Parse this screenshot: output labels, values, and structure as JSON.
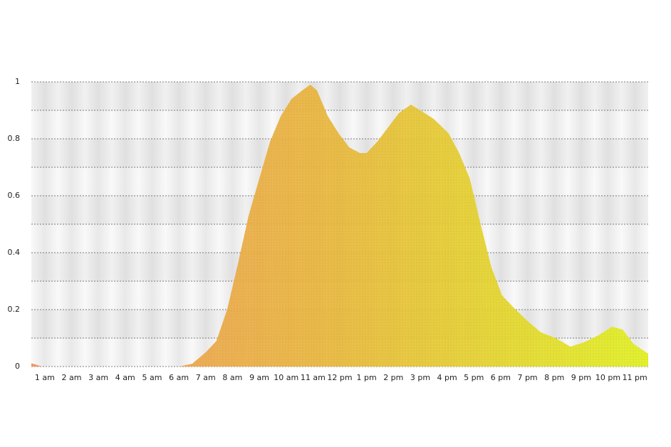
{
  "chart_data": {
    "type": "area",
    "x": [
      0.5,
      0.9,
      2,
      4,
      6,
      6.5,
      7,
      7.4,
      7.8,
      8.2,
      8.6,
      9,
      9.4,
      9.8,
      10.2,
      10.6,
      10.9,
      11.15,
      11.55,
      11.95,
      12.35,
      12.75,
      13,
      13.4,
      13.8,
      14.2,
      14.65,
      15,
      15.5,
      16.05,
      16.45,
      16.85,
      17.25,
      17.65,
      18.05,
      18.45,
      19,
      19.5,
      20.05,
      20.6,
      21.1,
      21.65,
      22.15,
      22.55,
      22.95,
      23.5
    ],
    "values": [
      0.012,
      0,
      0,
      0,
      0,
      0.01,
      0.05,
      0.09,
      0.2,
      0.36,
      0.53,
      0.66,
      0.79,
      0.88,
      0.94,
      0.97,
      0.99,
      0.97,
      0.88,
      0.82,
      0.77,
      0.75,
      0.75,
      0.79,
      0.84,
      0.89,
      0.92,
      0.9,
      0.87,
      0.82,
      0.75,
      0.66,
      0.5,
      0.35,
      0.25,
      0.21,
      0.16,
      0.12,
      0.1,
      0.07,
      0.085,
      0.11,
      0.14,
      0.13,
      0.08,
      0.045
    ],
    "gradient": [
      "#f0935a",
      "#e8b83a",
      "#e0f020"
    ],
    "xlim": [
      0.5,
      23.5
    ],
    "xticks": [
      {
        "value": 1,
        "label": "1 am"
      },
      {
        "value": 2,
        "label": "2 am"
      },
      {
        "value": 3,
        "label": "3 am"
      },
      {
        "value": 4,
        "label": "4 am"
      },
      {
        "value": 5,
        "label": "5 am"
      },
      {
        "value": 6,
        "label": "6 am"
      },
      {
        "value": 7,
        "label": "7 am"
      },
      {
        "value": 8,
        "label": "8 am"
      },
      {
        "value": 9,
        "label": "9 am"
      },
      {
        "value": 10,
        "label": "10 am"
      },
      {
        "value": 11,
        "label": "11 am"
      },
      {
        "value": 12,
        "label": "12 pm"
      },
      {
        "value": 13,
        "label": "1 pm"
      },
      {
        "value": 14,
        "label": "2 pm"
      },
      {
        "value": 15,
        "label": "3 pm"
      },
      {
        "value": 16,
        "label": "4 pm"
      },
      {
        "value": 17,
        "label": "5 pm"
      },
      {
        "value": 18,
        "label": "6 pm"
      },
      {
        "value": 19,
        "label": "7 pm"
      },
      {
        "value": 20,
        "label": "8 pm"
      },
      {
        "value": 21,
        "label": "9 pm"
      },
      {
        "value": 22,
        "label": "10 pm"
      },
      {
        "value": 23,
        "label": "11 pm"
      }
    ],
    "ylim": [
      0,
      1
    ],
    "yticks": [
      0,
      0.2,
      0.4,
      0.6,
      0.8,
      1
    ],
    "grid": true
  }
}
